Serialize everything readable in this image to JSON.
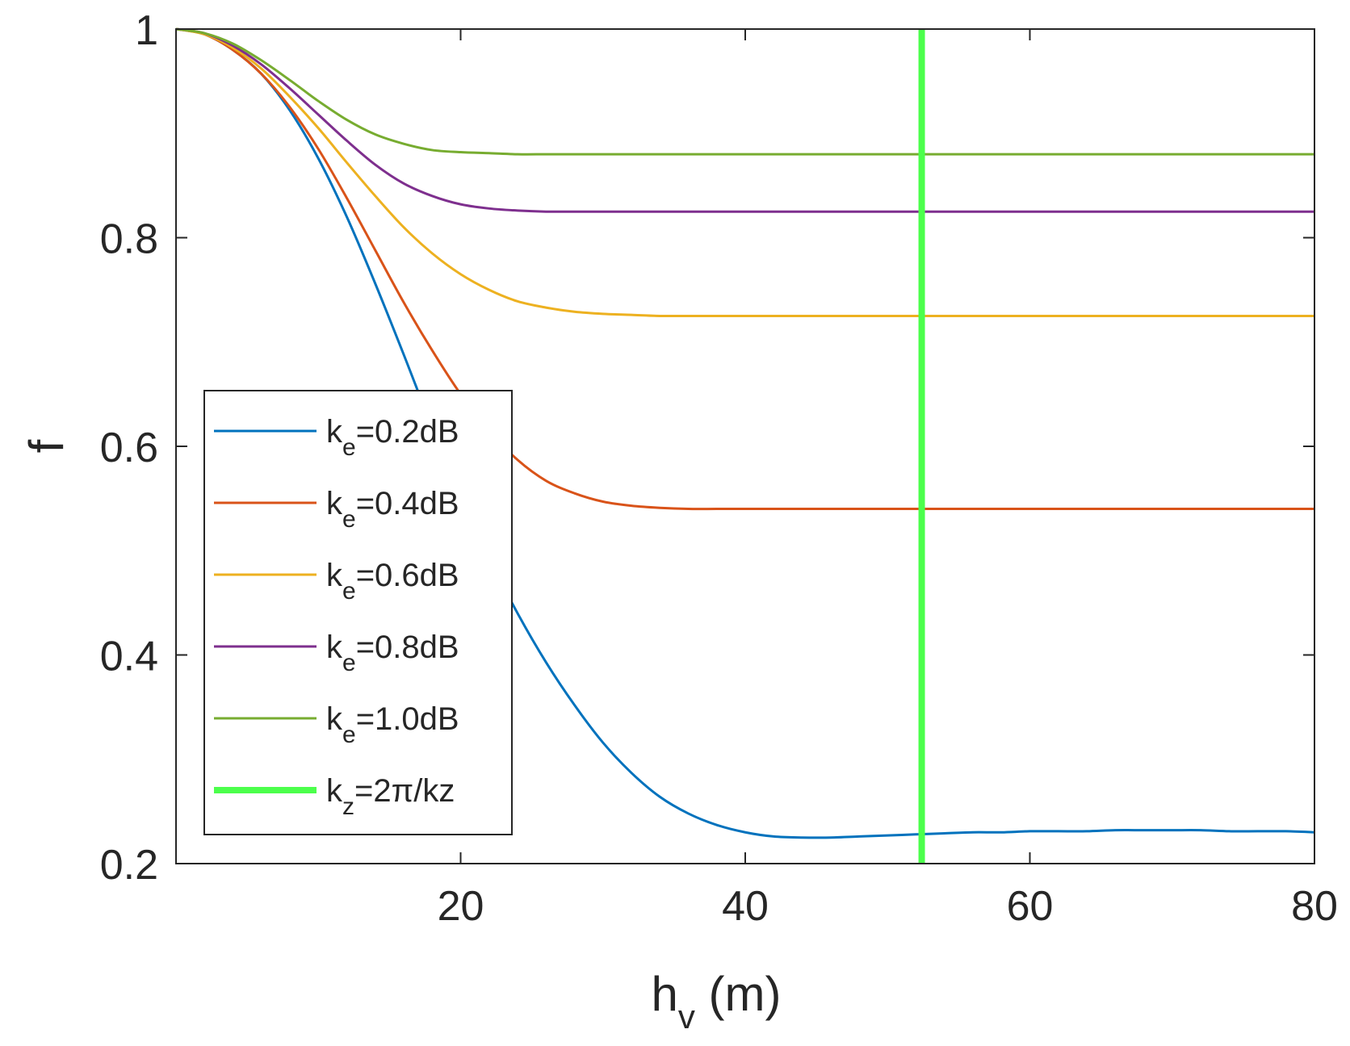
{
  "chart_data": {
    "type": "line",
    "title": "",
    "xlabel": "h",
    "xlabel_sub": "v",
    "xlabel_suffix": " (m)",
    "ylabel": "f",
    "xlim": [
      0,
      80
    ],
    "ylim": [
      0.2,
      1
    ],
    "xticks": [
      20,
      40,
      60,
      80
    ],
    "xtick_labels": [
      "20",
      "40",
      "60",
      "80"
    ],
    "yticks": [
      0.2,
      0.4,
      0.6,
      0.8,
      1
    ],
    "ytick_labels": [
      "0.2",
      "0.4",
      "0.6",
      "0.8",
      "1"
    ],
    "grid": false,
    "legend_position": "lower-left",
    "x": [
      0,
      2,
      4,
      6,
      8,
      10,
      12,
      14,
      16,
      18,
      20,
      22,
      24,
      26,
      28,
      30,
      32,
      34,
      36,
      38,
      40,
      42,
      44,
      46,
      48,
      50,
      52,
      54,
      56,
      58,
      60,
      62,
      64,
      66,
      68,
      70,
      72,
      74,
      76,
      78,
      80
    ],
    "series": [
      {
        "name": "k_e=0.2dB",
        "label_main": "k",
        "label_sub": "e",
        "label_rest": "=0.2dB",
        "color": "#0072BD",
        "values": [
          1.0,
          0.995,
          0.98,
          0.957,
          0.922,
          0.876,
          0.82,
          0.756,
          0.688,
          0.618,
          0.553,
          0.493,
          0.44,
          0.393,
          0.352,
          0.316,
          0.287,
          0.264,
          0.248,
          0.237,
          0.23,
          0.226,
          0.225,
          0.225,
          0.226,
          0.227,
          0.228,
          0.229,
          0.23,
          0.23,
          0.231,
          0.231,
          0.231,
          0.232,
          0.232,
          0.232,
          0.232,
          0.231,
          0.231,
          0.231,
          0.23
        ]
      },
      {
        "name": "k_e=0.4dB",
        "label_main": "k",
        "label_sub": "e",
        "label_rest": "=0.4dB",
        "color": "#D95319",
        "values": [
          1.0,
          0.995,
          0.98,
          0.957,
          0.925,
          0.885,
          0.838,
          0.788,
          0.738,
          0.692,
          0.65,
          0.615,
          0.587,
          0.567,
          0.555,
          0.547,
          0.543,
          0.541,
          0.54,
          0.54,
          0.54,
          0.54,
          0.54,
          0.54,
          0.54,
          0.54,
          0.54,
          0.54,
          0.54,
          0.54,
          0.54,
          0.54,
          0.54,
          0.54,
          0.54,
          0.54,
          0.54,
          0.54,
          0.54,
          0.54,
          0.54
        ]
      },
      {
        "name": "k_e=0.6dB",
        "label_main": "k",
        "label_sub": "e",
        "label_rest": "=0.6dB",
        "color": "#EDB120",
        "values": [
          1.0,
          0.995,
          0.982,
          0.962,
          0.935,
          0.905,
          0.872,
          0.84,
          0.81,
          0.785,
          0.765,
          0.75,
          0.739,
          0.733,
          0.729,
          0.727,
          0.726,
          0.725,
          0.725,
          0.725,
          0.725,
          0.725,
          0.725,
          0.725,
          0.725,
          0.725,
          0.725,
          0.725,
          0.725,
          0.725,
          0.725,
          0.725,
          0.725,
          0.725,
          0.725,
          0.725,
          0.725,
          0.725,
          0.725,
          0.725,
          0.725
        ]
      },
      {
        "name": "k_e=0.8dB",
        "label_main": "k",
        "label_sub": "e",
        "label_rest": "=0.8dB",
        "color": "#7E2F8E",
        "values": [
          1.0,
          0.996,
          0.984,
          0.966,
          0.943,
          0.918,
          0.893,
          0.87,
          0.852,
          0.84,
          0.832,
          0.828,
          0.826,
          0.825,
          0.825,
          0.825,
          0.825,
          0.825,
          0.825,
          0.825,
          0.825,
          0.825,
          0.825,
          0.825,
          0.825,
          0.825,
          0.825,
          0.825,
          0.825,
          0.825,
          0.825,
          0.825,
          0.825,
          0.825,
          0.825,
          0.825,
          0.825,
          0.825,
          0.825,
          0.825,
          0.825
        ]
      },
      {
        "name": "k_e=1.0dB",
        "label_main": "k",
        "label_sub": "e",
        "label_rest": "=1.0dB",
        "color": "#77AC30",
        "values": [
          1.0,
          0.996,
          0.986,
          0.97,
          0.951,
          0.931,
          0.913,
          0.899,
          0.89,
          0.884,
          0.882,
          0.881,
          0.88,
          0.88,
          0.88,
          0.88,
          0.88,
          0.88,
          0.88,
          0.88,
          0.88,
          0.88,
          0.88,
          0.88,
          0.88,
          0.88,
          0.88,
          0.88,
          0.88,
          0.88,
          0.88,
          0.88,
          0.88,
          0.88,
          0.88,
          0.88,
          0.88,
          0.88,
          0.88,
          0.88,
          0.88
        ]
      }
    ],
    "vline": {
      "name": "k_z=2π/kz",
      "label_main": "k",
      "label_sub": "z",
      "label_rest": "=2π/kz",
      "color": "#4CFF4C",
      "x": 52.4
    }
  }
}
